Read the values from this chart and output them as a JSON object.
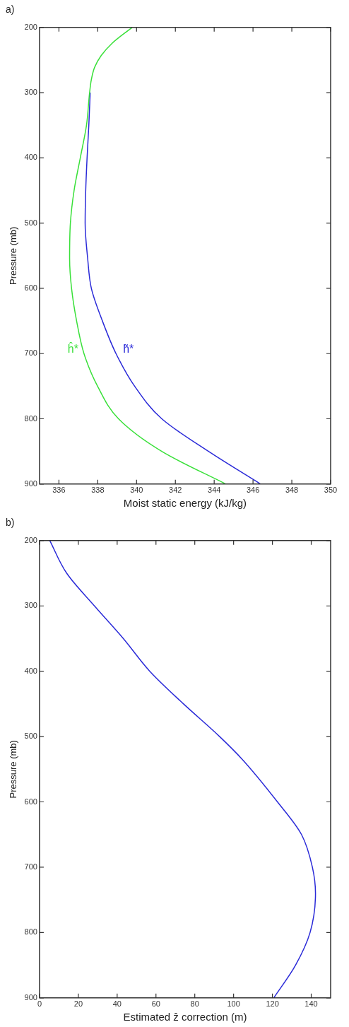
{
  "chart_data": [
    {
      "type": "line",
      "title": "a)",
      "xlabel": "Moist static energy (kJ/kg)",
      "ylabel": "Pressure (mb)",
      "xlim": [
        335,
        350
      ],
      "xticks": [
        336,
        338,
        340,
        342,
        344,
        346,
        348,
        350
      ],
      "ylim": [
        900,
        200
      ],
      "yticks": [
        200,
        300,
        400,
        500,
        600,
        700,
        800,
        900
      ],
      "series": [
        {
          "name": "h̃*",
          "color": "#2a2ad8",
          "x": [
            null,
            null,
            null,
            null,
            null,
            337.61,
            337.54,
            337.45,
            337.38,
            337.35,
            337.48,
            337.67,
            338.24,
            338.94,
            339.9,
            341.3,
            343.71,
            346.39
          ],
          "values": [
            null,
            null,
            null,
            null,
            null,
            300,
            350,
            400,
            450,
            500,
            554,
            600,
            650,
            700,
            750,
            800,
            850,
            900
          ]
        },
        {
          "name": "ĥ*",
          "color": "#3ae03a",
          "x": [
            339.77,
            338.75,
            338.18,
            337.84,
            337.67,
            337.58,
            337.42,
            337.1,
            336.78,
            336.59,
            336.55,
            336.65,
            336.91,
            337.29,
            337.99,
            339.07,
            341.3,
            344.6
          ],
          "values": [
            200,
            224,
            243,
            261,
            280,
            300,
            350,
            400,
            450,
            500,
            554,
            600,
            650,
            700,
            750,
            800,
            850,
            900
          ]
        }
      ]
    },
    {
      "type": "line",
      "title": "b)",
      "xlabel": "Estimated ẑ correction (m)",
      "ylabel": "Pressure (mb)",
      "xlim": [
        0,
        150
      ],
      "xticks": [
        0,
        20,
        40,
        60,
        80,
        100,
        120,
        140
      ],
      "ylim": [
        900,
        200
      ],
      "yticks": [
        200,
        300,
        400,
        500,
        600,
        700,
        800,
        900
      ],
      "series": [
        {
          "color": "#2a2ad8",
          "x": [
            5.3,
            14.0,
            28.3,
            43.2,
            56.8,
            74.2,
            92.8,
            104.5,
            122.6,
            135.0,
            140.6,
            142.2,
            139.4,
            131.9,
            120.7
          ],
          "values": [
            200,
            250,
            300,
            350,
            400,
            450,
            500,
            535,
            600,
            650,
            700,
            740,
            800,
            850,
            900
          ]
        }
      ]
    }
  ]
}
